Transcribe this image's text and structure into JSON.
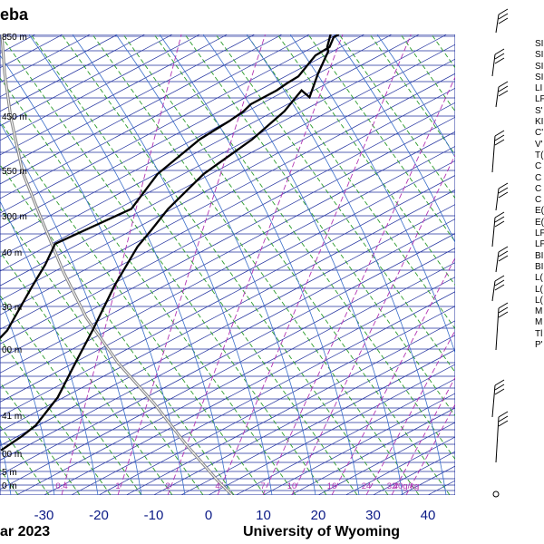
{
  "header": {
    "title": "eba"
  },
  "footer": {
    "date_fragment": "ar 2023",
    "credit": "University of Wyoming"
  },
  "colors": {
    "isobar": "#1f2f9e",
    "isotherm": "#1f2f9e",
    "dry_adiabat": "#2a9a2a",
    "moist_adiabat": "#3a6ec9",
    "mixing_ratio": "#b234b2",
    "profile": "#000000",
    "parcel": "#8a8a8a",
    "tick_label": "#0b1a86"
  },
  "chart_data": {
    "type": "skew-t",
    "title": "",
    "xlabel": "",
    "ylabel": "",
    "x_ticks": [
      "-30",
      "-20",
      "-10",
      "0",
      "10",
      "20",
      "30",
      "40"
    ],
    "x_tick_values": [
      -30,
      -20,
      -10,
      0,
      10,
      20,
      30,
      40
    ],
    "pressure_levels": [
      {
        "label": "850 m"
      },
      {
        "label": "450 m"
      },
      {
        "label": "550 m"
      },
      {
        "label": "300 m"
      },
      {
        "label": "40 m"
      },
      {
        "label": "30 m"
      },
      {
        "label": "00 m"
      },
      {
        "label": "41 m"
      },
      {
        "label": "00 m"
      },
      {
        "label": "5 m"
      },
      {
        "label": "0 m"
      }
    ],
    "mixing_ratio_labels": [
      "0.4",
      "1",
      "2",
      "4",
      "7",
      "10",
      "16",
      "24",
      "32",
      "40g/kg"
    ],
    "temperature_profile": [
      [
        0,
        330
      ],
      [
        0,
        321
      ],
      [
        0.8,
        318
      ],
      [
        -0.8,
        302
      ],
      [
        -1.6,
        285
      ],
      [
        -5.2,
        290
      ],
      [
        -9.4,
        275
      ],
      [
        -18.4,
        255
      ],
      [
        -32.8,
        230
      ],
      [
        -42.4,
        205
      ],
      [
        -46.4,
        190
      ],
      [
        -49.9,
        178
      ],
      [
        -54.5,
        150
      ],
      [
        -58.2,
        118
      ],
      [
        -61.0,
        97
      ],
      [
        -64.4,
        70
      ],
      [
        -69.7,
        50
      ],
      [
        -73.8,
        42
      ],
      [
        -80.0,
        32
      ]
    ],
    "dewpoint_profile": [
      [
        3,
        330
      ],
      [
        1.4,
        328
      ],
      [
        0.8,
        321
      ],
      [
        -3.5,
        315
      ],
      [
        -7.7,
        300
      ],
      [
        -11.2,
        295
      ],
      [
        -14.2,
        290
      ],
      [
        -22.4,
        280
      ],
      [
        -24.3,
        275
      ],
      [
        -28.5,
        268
      ],
      [
        -37.5,
        255
      ],
      [
        -49.6,
        230
      ],
      [
        -55.8,
        205
      ],
      [
        -80.2,
        180
      ],
      [
        -81.8,
        165
      ],
      [
        -84.4,
        150
      ],
      [
        -89.3,
        118
      ],
      [
        -96.3,
        98
      ],
      [
        -87.8,
        80
      ],
      [
        -93.8,
        65
      ],
      [
        -91.1,
        48
      ],
      [
        -97.2,
        33
      ]
    ],
    "grid": true
  },
  "station_index_labels": [
    "SI",
    "SI",
    "SI",
    "SI",
    "LI",
    "LF",
    "S'",
    "KI",
    "C'",
    "V'",
    "T(",
    "C",
    "C",
    "C",
    "C",
    "E(",
    "E(",
    "LF",
    "LF",
    "BI",
    "BI",
    "L(",
    "L(",
    "L(",
    "M",
    "M",
    "Tl",
    "P'"
  ]
}
